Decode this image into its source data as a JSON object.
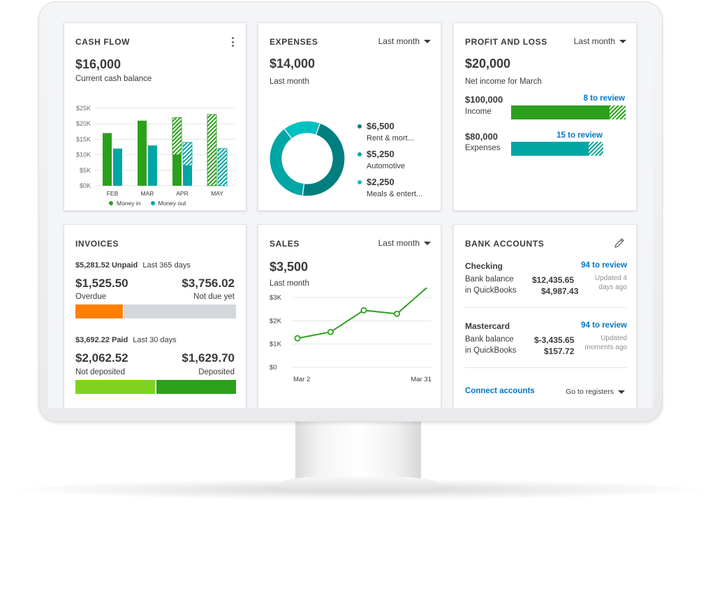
{
  "colors": {
    "green": "#2ca01c",
    "lightGreen": "#7fd320",
    "teal": "#00a6a4",
    "darkTeal": "#007f7e",
    "brightTeal": "#00c1bf",
    "orange": "#ff8000",
    "gray": "#d4d7dc",
    "link": "#0077c5"
  },
  "cash_flow": {
    "title": "CASH FLOW",
    "amount": "$16,000",
    "subtitle": "Current cash balance",
    "legend_in": "Money in",
    "legend_out": "Money out"
  },
  "expenses": {
    "title": "EXPENSES",
    "period": "Last month",
    "amount": "$14,000",
    "subtitle": "Last month",
    "items": [
      {
        "amount": "$6,500",
        "label": "Rent & mort...",
        "color": "#007f7e"
      },
      {
        "amount": "$5,250",
        "label": "Automotive",
        "color": "#00a6a4"
      },
      {
        "amount": "$2,250",
        "label": "Meals & entert...",
        "color": "#00c1bf"
      }
    ]
  },
  "profit_loss": {
    "title": "PROFIT AND LOSS",
    "period": "Last month",
    "amount": "$20,000",
    "subtitle": "Net income for March",
    "income_amount": "$100,000",
    "income_label": "Income",
    "income_review": "8 to review",
    "income_fraction": 0.86,
    "expenses_amount": "$80,000",
    "expenses_label": "Expenses",
    "expenses_review": "15 to review",
    "expenses_fraction": 0.84
  },
  "invoices": {
    "title": "INVOICES",
    "unpaid_amount": "$5,281.52 Unpaid",
    "unpaid_period": "Last 365 days",
    "overdue_amount": "$1,525.50",
    "overdue_label": "Overdue",
    "not_due_amount": "$3,756.02",
    "not_due_label": "Not due yet",
    "paid_amount": "$3,692.22 Paid",
    "paid_period": "Last 30 days",
    "not_deposited_amount": "$2,062.52",
    "not_deposited_label": "Not deposited",
    "deposited_amount": "$1,629.70",
    "deposited_label": "Deposited"
  },
  "sales": {
    "title": "SALES",
    "period": "Last month",
    "amount": "$3,500",
    "subtitle": "Last month"
  },
  "bank_accounts": {
    "title": "BANK ACCOUNTS",
    "accounts": [
      {
        "name": "Checking",
        "review": "94 to review",
        "bank_label": "Bank balance",
        "bank_value": "$12,435.65",
        "qb_label": "in QuickBooks",
        "qb_value": "$4,987.43",
        "updated": "Updated 4 days ago"
      },
      {
        "name": "Mastercard",
        "review": "94 to review",
        "bank_label": "Bank balance",
        "bank_value": "$-3,435.65",
        "qb_label": "in QuickBooks",
        "qb_value": "$157.72",
        "updated": "Updated moments ago"
      }
    ],
    "connect": "Connect accounts",
    "registers": "Go to registers"
  },
  "chart_data": [
    {
      "type": "bar",
      "categories": [
        "FEB",
        "MAR",
        "APR",
        "MAY"
      ],
      "series": [
        {
          "name": "Money in",
          "values": [
            17000,
            21000,
            22000,
            23000
          ]
        },
        {
          "name": "Money out",
          "values": [
            12000,
            13000,
            14000,
            12000
          ]
        }
      ],
      "y_tick_labels": [
        "$0K",
        "$5K",
        "$10K",
        "$15K",
        "$20K",
        "$25K"
      ],
      "ylim": [
        0,
        25000
      ],
      "grid": true,
      "legend": "bottom"
    },
    {
      "type": "pie",
      "labels": [
        "Rent & mort...",
        "Automotive",
        "Meals & entert..."
      ],
      "values": [
        6500,
        5250,
        2250
      ]
    },
    {
      "type": "line",
      "x": [
        "Mar 2",
        "Mar 9",
        "Mar 16",
        "Mar 23",
        "Mar 31"
      ],
      "x_tick_labels": [
        "Mar 2",
        "Mar 31"
      ],
      "values": [
        1250,
        1520,
        2450,
        2300,
        3550
      ],
      "y_tick_labels": [
        "$0",
        "$1K",
        "$2K",
        "$3K"
      ],
      "ylim": [
        0,
        3000
      ],
      "grid": true
    }
  ]
}
